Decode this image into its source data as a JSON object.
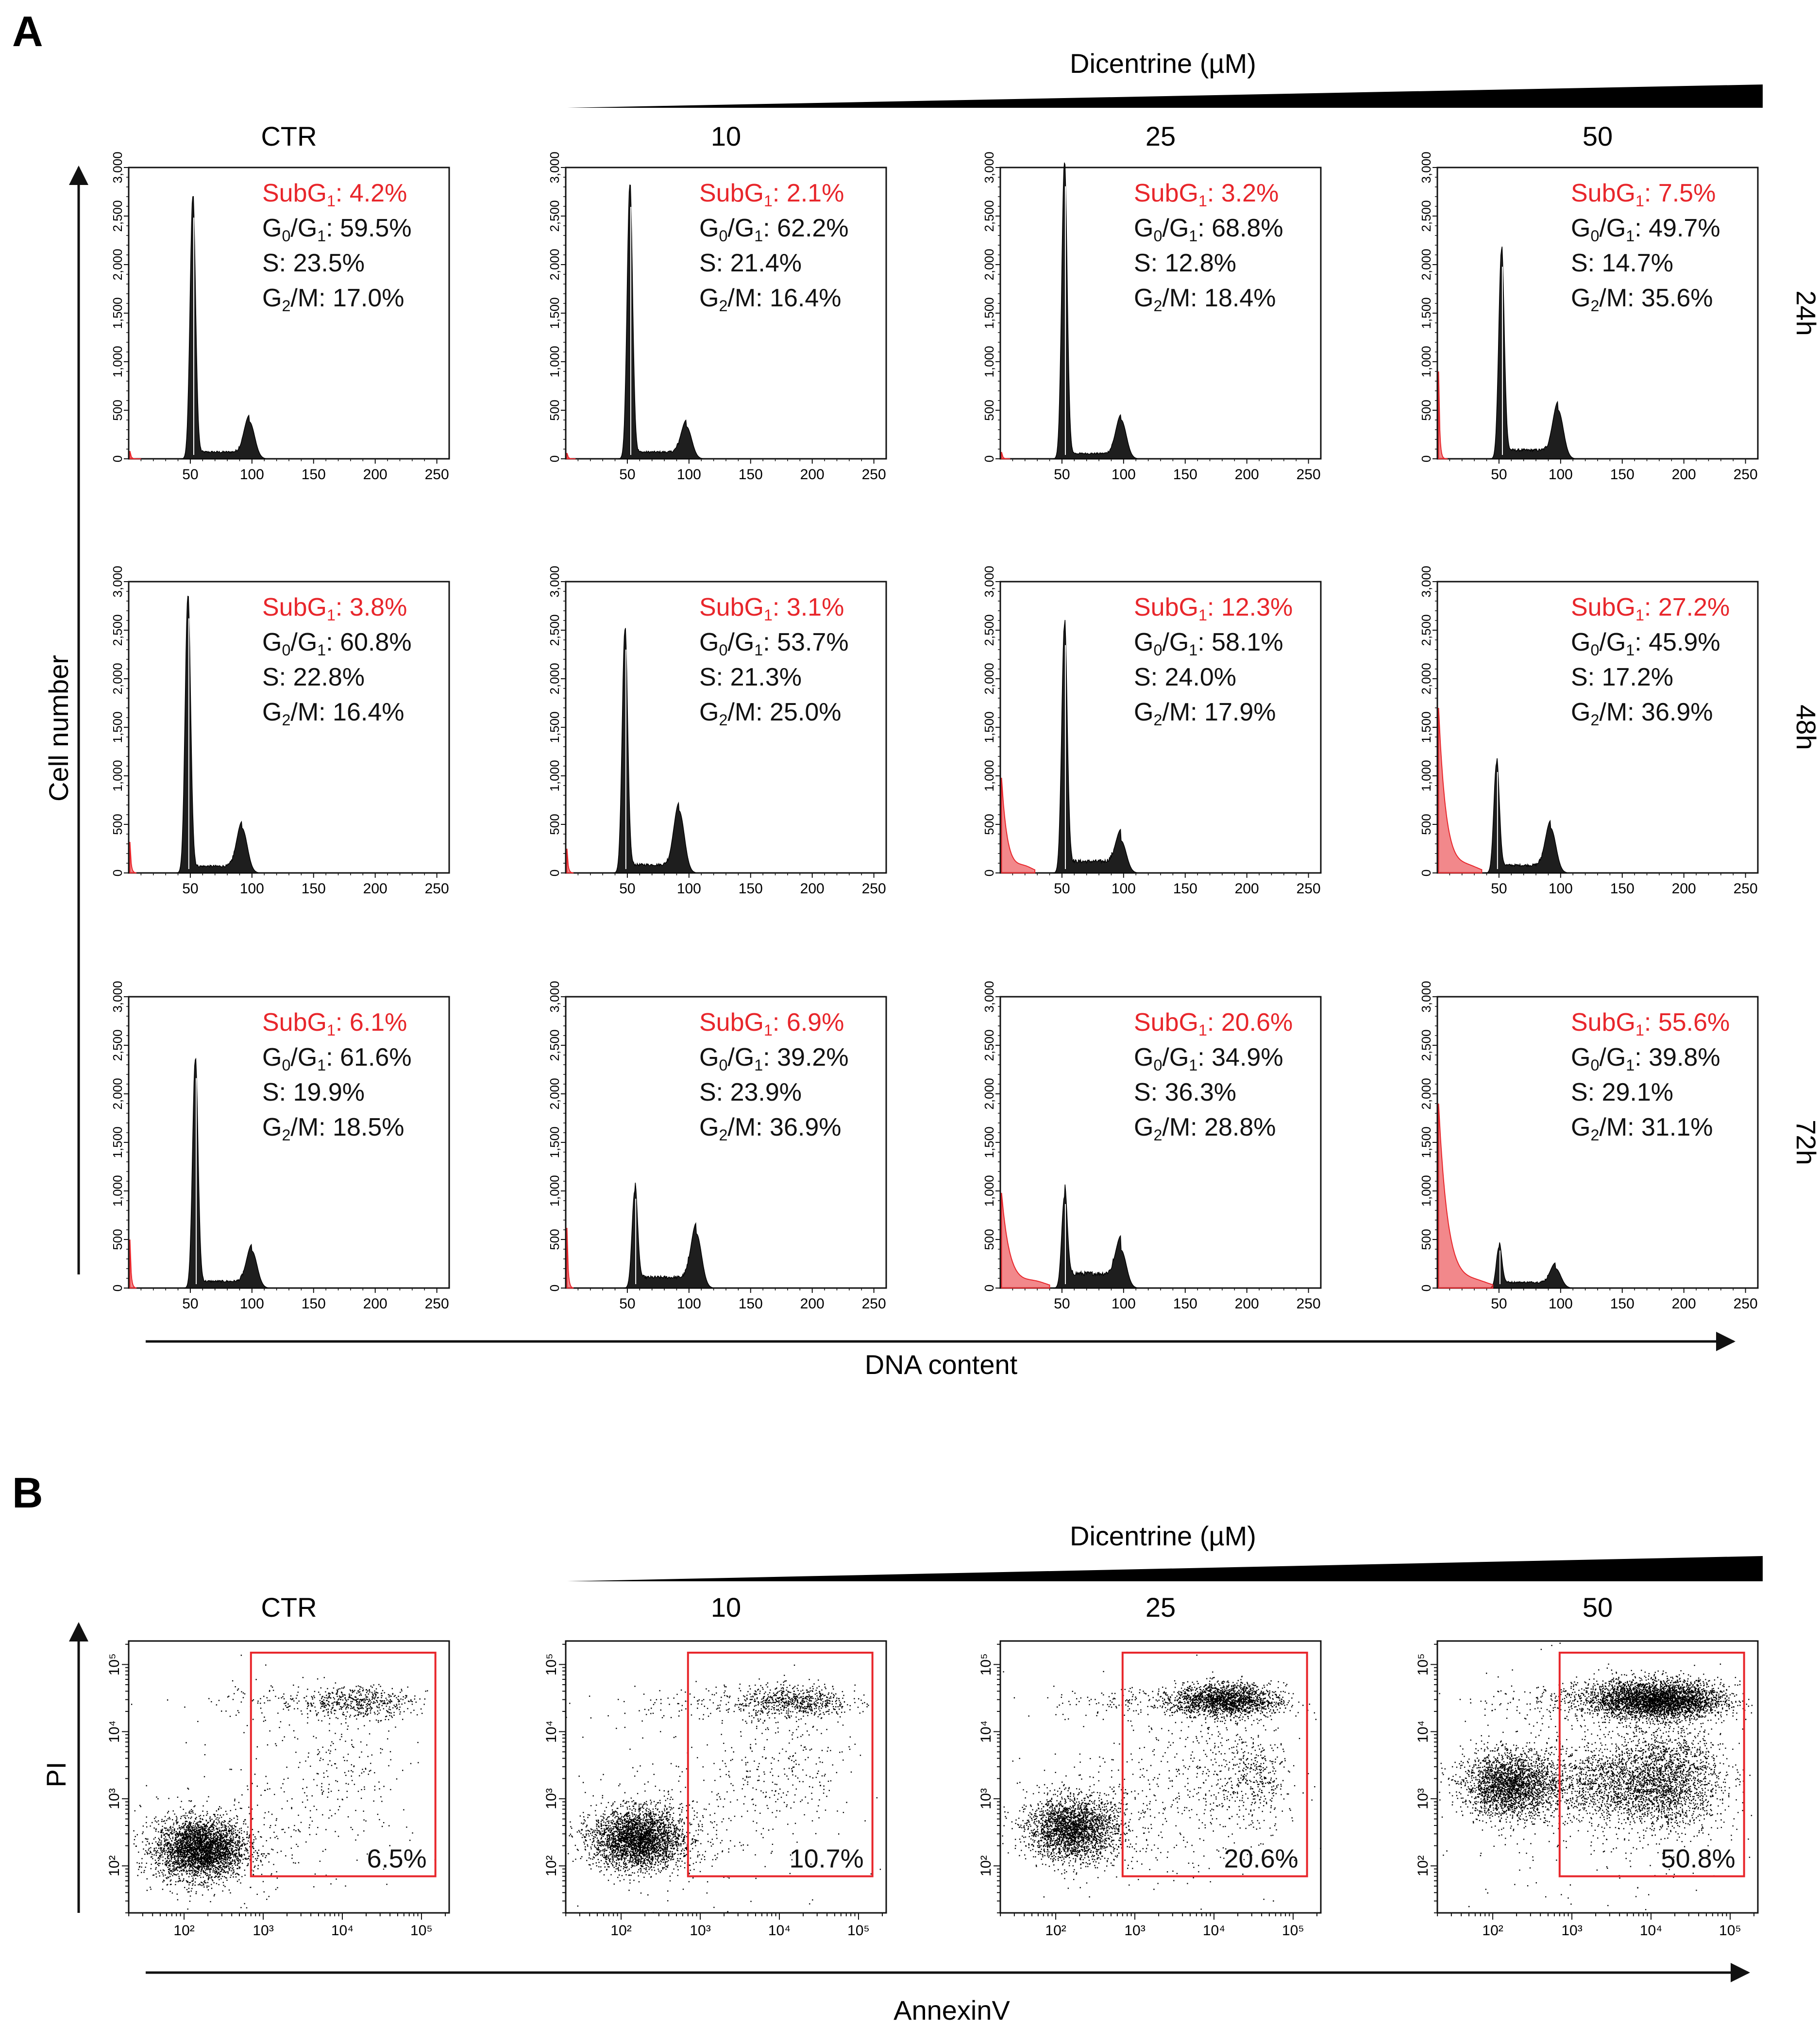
{
  "chart_data": [
    {
      "type": "histogram",
      "panel": "A",
      "dose_header": "Dicentrine (µM)",
      "columns": [
        "CTR",
        "10",
        "25",
        "50"
      ],
      "rows": [
        "24h",
        "48h",
        "72h"
      ],
      "ylabel": "Cell number",
      "xlabel": "DNA content",
      "x_ticks": [
        "50",
        "100",
        "150",
        "200",
        "250"
      ],
      "y_ticks": [
        "0",
        "500",
        "1,000",
        "1,500",
        "2,000",
        "2,500",
        "3,000"
      ],
      "xlim": [
        0,
        260
      ],
      "ylim": [
        0,
        3000
      ],
      "label_prefixes": {
        "subg1": "SubG",
        "g0g1": "G",
        "s": "S: ",
        "g2m": "G",
        "g2m_tail": "/M: "
      },
      "subscripts": {
        "sub": "1",
        "g0": "0",
        "g1": "1",
        "g2": "2"
      },
      "panels": [
        {
          "row": "24h",
          "col": "CTR",
          "subg1": "4.2%",
          "g0g1": "59.5%",
          "s": "23.5%",
          "g2m": "17.0%",
          "g1_pos": 52,
          "g1_h": 2700,
          "g2_pos": 98,
          "g2_h": 380,
          "sub_h": 80,
          "sub_tail": 10,
          "s_level": 70
        },
        {
          "row": "24h",
          "col": "10",
          "subg1": "2.1%",
          "g0g1": "62.2%",
          "s": "21.4%",
          "g2m": "16.4%",
          "g1_pos": 52,
          "g1_h": 2820,
          "g2_pos": 98,
          "g2_h": 330,
          "sub_h": 60,
          "sub_tail": 8,
          "s_level": 70
        },
        {
          "row": "24h",
          "col": "25",
          "subg1": "3.2%",
          "g0g1": "68.8%",
          "s": "12.8%",
          "g2m": "18.4%",
          "g1_pos": 52,
          "g1_h": 3050,
          "g2_pos": 98,
          "g2_h": 400,
          "sub_h": 70,
          "sub_tail": 8,
          "s_level": 55
        },
        {
          "row": "24h",
          "col": "50",
          "subg1": "7.5%",
          "g0g1": "49.7%",
          "s": "14.7%",
          "g2m": "35.6%",
          "g1_pos": 52,
          "g1_h": 2150,
          "g2_pos": 98,
          "g2_h": 500,
          "sub_h": 900,
          "sub_tail": 8,
          "s_level": 90
        },
        {
          "row": "48h",
          "col": "CTR",
          "subg1": "3.8%",
          "g0g1": "60.8%",
          "s": "22.8%",
          "g2m": "16.4%",
          "g1_pos": 48,
          "g1_h": 2850,
          "g2_pos": 92,
          "g2_h": 460,
          "sub_h": 320,
          "sub_tail": 6,
          "s_level": 70
        },
        {
          "row": "48h",
          "col": "10",
          "subg1": "3.1%",
          "g0g1": "53.7%",
          "s": "21.3%",
          "g2m": "25.0%",
          "g1_pos": 48,
          "g1_h": 2500,
          "g2_pos": 92,
          "g2_h": 640,
          "sub_h": 250,
          "sub_tail": 6,
          "s_level": 85
        },
        {
          "row": "48h",
          "col": "25",
          "subg1": "12.3%",
          "g0g1": "58.1%",
          "s": "24.0%",
          "g2m": "17.9%",
          "g1_pos": 52,
          "g1_h": 2550,
          "g2_pos": 98,
          "g2_h": 330,
          "sub_h": 980,
          "sub_tail": 28,
          "s_level": 120
        },
        {
          "row": "48h",
          "col": "50",
          "subg1": "27.2%",
          "g0g1": "45.9%",
          "s": "17.2%",
          "g2m": "36.9%",
          "g1_pos": 48,
          "g1_h": 1130,
          "g2_pos": 92,
          "g2_h": 460,
          "sub_h": 1700,
          "sub_tail": 36,
          "s_level": 80
        },
        {
          "row": "72h",
          "col": "CTR",
          "subg1": "6.1%",
          "g0g1": "61.6%",
          "s": "19.9%",
          "g2m": "18.5%",
          "g1_pos": 54,
          "g1_h": 2350,
          "g2_pos": 100,
          "g2_h": 380,
          "sub_h": 500,
          "sub_tail": 6,
          "s_level": 70
        },
        {
          "row": "72h",
          "col": "10",
          "subg1": "6.9%",
          "g0g1": "39.2%",
          "s": "23.9%",
          "g2m": "36.9%",
          "g1_pos": 56,
          "g1_h": 1000,
          "g2_pos": 106,
          "g2_h": 560,
          "sub_h": 620,
          "sub_tail": 6,
          "s_level": 110
        },
        {
          "row": "72h",
          "col": "25",
          "subg1": "20.6%",
          "g0g1": "34.9%",
          "s": "36.3%",
          "g2m": "28.8%",
          "g1_pos": 52,
          "g1_h": 940,
          "g2_pos": 98,
          "g2_h": 390,
          "sub_h": 980,
          "sub_tail": 40,
          "s_level": 150
        },
        {
          "row": "72h",
          "col": "50",
          "subg1": "55.6%",
          "g0g1": "39.8%",
          "s": "29.1%",
          "g2m": "31.1%",
          "g1_pos": 50,
          "g1_h": 420,
          "g2_pos": 96,
          "g2_h": 200,
          "sub_h": 1900,
          "sub_tail": 45,
          "s_level": 60
        }
      ]
    },
    {
      "type": "scatter",
      "panel": "B",
      "dose_header": "Dicentrine (µM)",
      "columns": [
        "CTR",
        "10",
        "25",
        "50"
      ],
      "ylabel": "PI",
      "xlabel": "AnnexinV",
      "x_ticks": [
        "10²",
        "10³",
        "10⁴",
        "10⁵"
      ],
      "y_ticks": [
        "10²",
        "10³",
        "10⁴",
        "10⁵"
      ],
      "scale": "log",
      "gate_xlim": [
        700,
        150000
      ],
      "gate_ylim": [
        70,
        150000
      ],
      "panels": [
        {
          "col": "CTR",
          "gate_pct": "6.5%"
        },
        {
          "col": "10",
          "gate_pct": "10.7%"
        },
        {
          "col": "25",
          "gate_pct": "20.6%"
        },
        {
          "col": "50",
          "gate_pct": "50.8%"
        }
      ]
    }
  ],
  "figure": {
    "label_a": "A",
    "label_b": "B"
  },
  "colors": {
    "ink": "#111111",
    "subg1": "#e8262b",
    "fill": "#1e1e1e",
    "gate": "#e8262b"
  }
}
